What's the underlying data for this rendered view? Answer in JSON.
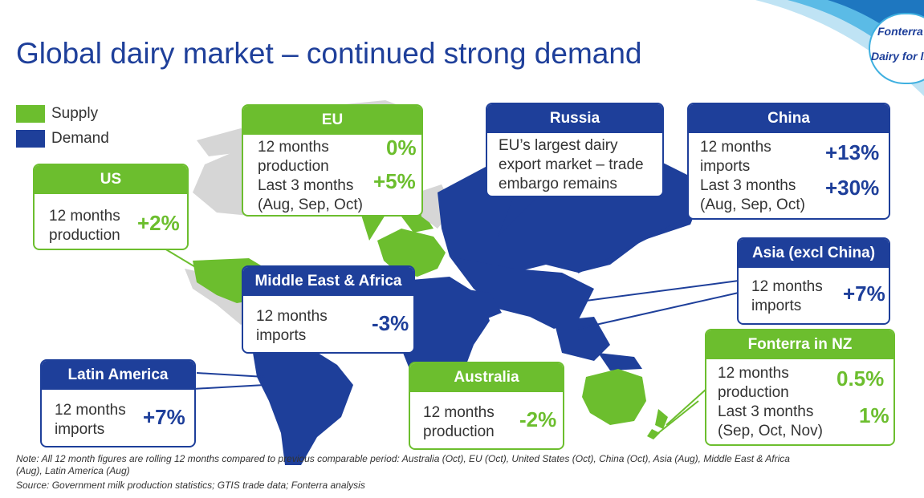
{
  "title": "Global dairy market – continued strong demand",
  "brand": {
    "name": "Fonterra",
    "tagline": "Dairy for life"
  },
  "legend": [
    {
      "label": "Supply",
      "color": "#6cbe2e"
    },
    {
      "label": "Demand",
      "color": "#1e3f9a"
    }
  ],
  "colors": {
    "supply": "#6cbe2e",
    "demand": "#1e3f9a"
  },
  "boxes": {
    "eu": {
      "title": "EU",
      "rows": [
        {
          "label": "12 months production",
          "label_l1": "12 months",
          "label_l2": "production",
          "value": "0%"
        },
        {
          "label": "Last 3 months (Aug, Sep, Oct)",
          "label_l1": "Last 3 months",
          "label_l2": "(Aug, Sep, Oct)",
          "value": "+5%"
        }
      ]
    },
    "us": {
      "title": "US",
      "rows": [
        {
          "label_l1": "12 months",
          "label_l2": "production",
          "value": "+2%"
        }
      ]
    },
    "russia": {
      "title": "Russia",
      "text_l1": "EU’s largest dairy",
      "text_l2": "export market – trade",
      "text_l3": "embargo remains"
    },
    "china": {
      "title": "China",
      "rows": [
        {
          "label_l1": "12 months",
          "label_l2": "imports",
          "value": "+13%"
        },
        {
          "label_l1": "Last 3 months",
          "label_l2": "(Aug, Sep, Oct)",
          "value": "+30%"
        }
      ]
    },
    "asia": {
      "title": "Asia (excl China)",
      "rows": [
        {
          "label_l1": "12 months",
          "label_l2": "imports",
          "value": "+7%"
        }
      ]
    },
    "mea": {
      "title": "Middle East & Africa",
      "rows": [
        {
          "label_l1": "12 months",
          "label_l2": "imports",
          "value": "-3%"
        }
      ]
    },
    "latam": {
      "title": "Latin America",
      "rows": [
        {
          "label_l1": "12 months",
          "label_l2": "imports",
          "value": "+7%"
        }
      ]
    },
    "australia": {
      "title": "Australia",
      "rows": [
        {
          "label_l1": "12 months",
          "label_l2": "production",
          "value": "-2%"
        }
      ]
    },
    "nz": {
      "title": "Fonterra in NZ",
      "rows": [
        {
          "label_l1": "12 months",
          "label_l2": "production",
          "value": "0.5%"
        },
        {
          "label_l1": "Last 3 months",
          "label_l2": "(Sep, Oct, Nov)",
          "value": "1%"
        }
      ]
    }
  },
  "note_l1": "Note: All 12 month figures are rolling 12 months compared to previous comparable period: Australia (Oct), EU (Oct), United States (Oct), China (Oct), Asia (Aug), Middle East & Africa",
  "note_l2": "(Aug), Latin America (Aug)",
  "source": "Source: Government milk production statistics; GTIS trade data; Fonterra analysis"
}
